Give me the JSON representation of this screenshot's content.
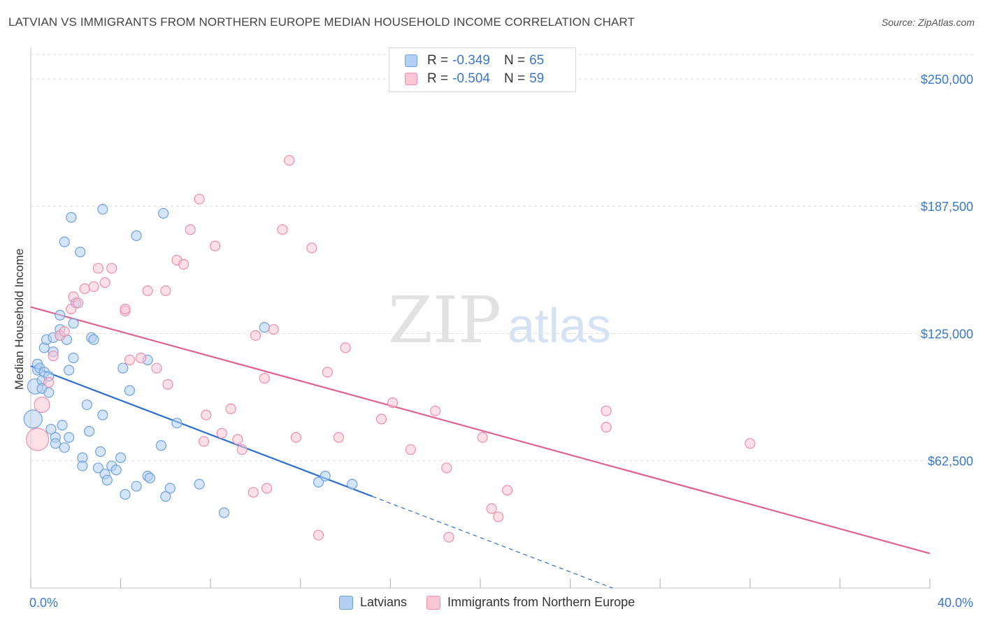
{
  "title": "LATVIAN VS IMMIGRANTS FROM NORTHERN EUROPE MEDIAN HOUSEHOLD INCOME CORRELATION CHART",
  "source": "Source: ZipAtlas.com",
  "watermark": {
    "zip": "ZIP",
    "atlas": "atlas"
  },
  "colors": {
    "blue_fill": "#b3d0f3",
    "blue_stroke": "#6fa1de",
    "blue_line": "#2b6fd1",
    "pink_fill": "#f9c6d6",
    "pink_stroke": "#ee8fab",
    "pink_line": "#e0628c",
    "axis_text": "#3b78c9",
    "grid": "#dedede"
  },
  "legend": {
    "rows": [
      {
        "r_label": "R =",
        "r_value": "-0.349",
        "n_label": "N =",
        "n_value": "65",
        "series": "blue"
      },
      {
        "r_label": "R =",
        "r_value": "-0.504",
        "n_label": "N =",
        "n_value": "59",
        "series": "pink"
      }
    ]
  },
  "bottom_legend": {
    "blue_label": "Latvians",
    "pink_label": "Immigrants from Northern Europe"
  },
  "chart_data": {
    "type": "scatter",
    "title": "LATVIAN VS IMMIGRANTS FROM NORTHERN EUROPE MEDIAN HOUSEHOLD INCOME CORRELATION CHART",
    "xlabel": "",
    "ylabel": "Median Household Income",
    "xlim": [
      0,
      40
    ],
    "ylim": [
      0,
      262000
    ],
    "x_tick_labels": [
      "0.0%",
      "40.0%"
    ],
    "y_ticks": [
      62500,
      125000,
      187500,
      250000
    ],
    "y_tick_labels": [
      "$62,500",
      "$125,000",
      "$187,500",
      "$250,000"
    ],
    "series": [
      {
        "name": "Latvians",
        "color": "blue",
        "points": [
          [
            0.1,
            83000
          ],
          [
            0.2,
            99000
          ],
          [
            0.3,
            107000
          ],
          [
            0.3,
            110000
          ],
          [
            0.4,
            108000
          ],
          [
            0.5,
            102000
          ],
          [
            0.5,
            98000
          ],
          [
            0.6,
            118000
          ],
          [
            0.6,
            106000
          ],
          [
            0.7,
            122000
          ],
          [
            0.8,
            104000
          ],
          [
            0.8,
            96000
          ],
          [
            0.9,
            78000
          ],
          [
            1.0,
            116000
          ],
          [
            1.0,
            123000
          ],
          [
            1.1,
            74000
          ],
          [
            1.1,
            71000
          ],
          [
            1.3,
            127000
          ],
          [
            1.3,
            134000
          ],
          [
            1.3,
            124000
          ],
          [
            1.4,
            80000
          ],
          [
            1.5,
            69000
          ],
          [
            1.5,
            170000
          ],
          [
            1.6,
            122000
          ],
          [
            1.7,
            107000
          ],
          [
            1.7,
            74000
          ],
          [
            1.8,
            182000
          ],
          [
            1.9,
            113000
          ],
          [
            1.9,
            130000
          ],
          [
            2.0,
            140000
          ],
          [
            2.2,
            165000
          ],
          [
            2.3,
            64000
          ],
          [
            2.3,
            60000
          ],
          [
            2.5,
            90000
          ],
          [
            2.6,
            77000
          ],
          [
            2.7,
            123000
          ],
          [
            2.8,
            122000
          ],
          [
            3.0,
            59000
          ],
          [
            3.1,
            67000
          ],
          [
            3.2,
            186000
          ],
          [
            3.2,
            85000
          ],
          [
            3.3,
            56000
          ],
          [
            3.4,
            53000
          ],
          [
            3.6,
            60000
          ],
          [
            3.8,
            58000
          ],
          [
            4.0,
            64000
          ],
          [
            4.1,
            108000
          ],
          [
            4.2,
            46000
          ],
          [
            4.4,
            97000
          ],
          [
            4.7,
            50000
          ],
          [
            4.7,
            173000
          ],
          [
            5.2,
            112000
          ],
          [
            5.2,
            55000
          ],
          [
            5.3,
            54000
          ],
          [
            5.8,
            70000
          ],
          [
            5.9,
            184000
          ],
          [
            6.0,
            45000
          ],
          [
            6.2,
            49000
          ],
          [
            6.5,
            81000
          ],
          [
            7.5,
            51000
          ],
          [
            8.6,
            37000
          ],
          [
            10.4,
            128000
          ],
          [
            12.8,
            52000
          ],
          [
            13.1,
            55000
          ],
          [
            14.3,
            51000
          ]
        ],
        "sizes": {
          "default": 7,
          "large": [
            [
              0.1,
              83000,
              13
            ],
            [
              0.2,
              99000,
              11
            ]
          ]
        },
        "trend": {
          "x0": 0.0,
          "y0": 109000,
          "x1": 15.2,
          "y1": 45000,
          "dash_to_x": 30.0
        }
      },
      {
        "name": "Immigrants from Northern Europe",
        "color": "pink",
        "points": [
          [
            0.3,
            73000
          ],
          [
            0.5,
            90000
          ],
          [
            0.8,
            101000
          ],
          [
            1.0,
            114000
          ],
          [
            1.3,
            124000
          ],
          [
            1.5,
            126000
          ],
          [
            1.8,
            137000
          ],
          [
            1.9,
            143000
          ],
          [
            2.1,
            140000
          ],
          [
            2.4,
            147000
          ],
          [
            2.8,
            148000
          ],
          [
            3.0,
            157000
          ],
          [
            3.3,
            150000
          ],
          [
            3.6,
            157000
          ],
          [
            4.2,
            136000
          ],
          [
            4.2,
            137000
          ],
          [
            4.4,
            112000
          ],
          [
            4.9,
            113000
          ],
          [
            5.2,
            146000
          ],
          [
            5.6,
            108000
          ],
          [
            6.0,
            146000
          ],
          [
            6.1,
            100000
          ],
          [
            6.5,
            161000
          ],
          [
            6.8,
            159000
          ],
          [
            7.1,
            176000
          ],
          [
            7.5,
            191000
          ],
          [
            7.7,
            72000
          ],
          [
            7.8,
            85000
          ],
          [
            8.2,
            168000
          ],
          [
            8.5,
            76000
          ],
          [
            8.9,
            88000
          ],
          [
            9.2,
            73000
          ],
          [
            9.4,
            68000
          ],
          [
            9.9,
            47000
          ],
          [
            10.0,
            124000
          ],
          [
            10.4,
            103000
          ],
          [
            10.5,
            49000
          ],
          [
            10.8,
            127000
          ],
          [
            11.2,
            176000
          ],
          [
            11.5,
            210000
          ],
          [
            11.8,
            74000
          ],
          [
            12.5,
            167000
          ],
          [
            12.8,
            26000
          ],
          [
            13.2,
            106000
          ],
          [
            13.7,
            74000
          ],
          [
            14.0,
            118000
          ],
          [
            15.6,
            83000
          ],
          [
            16.1,
            91000
          ],
          [
            16.9,
            68000
          ],
          [
            18.0,
            87000
          ],
          [
            18.5,
            59000
          ],
          [
            18.6,
            25000
          ],
          [
            20.1,
            74000
          ],
          [
            20.5,
            39000
          ],
          [
            20.8,
            35000
          ],
          [
            21.2,
            48000
          ],
          [
            25.6,
            87000
          ],
          [
            25.6,
            79000
          ],
          [
            32.0,
            71000
          ]
        ],
        "sizes": {
          "default": 7,
          "large": [
            [
              0.3,
              73000,
              16
            ],
            [
              0.5,
              90000,
              11
            ]
          ]
        },
        "trend": {
          "x0": 0.0,
          "y0": 138000,
          "x1": 40.0,
          "y1": 17000
        }
      }
    ]
  }
}
